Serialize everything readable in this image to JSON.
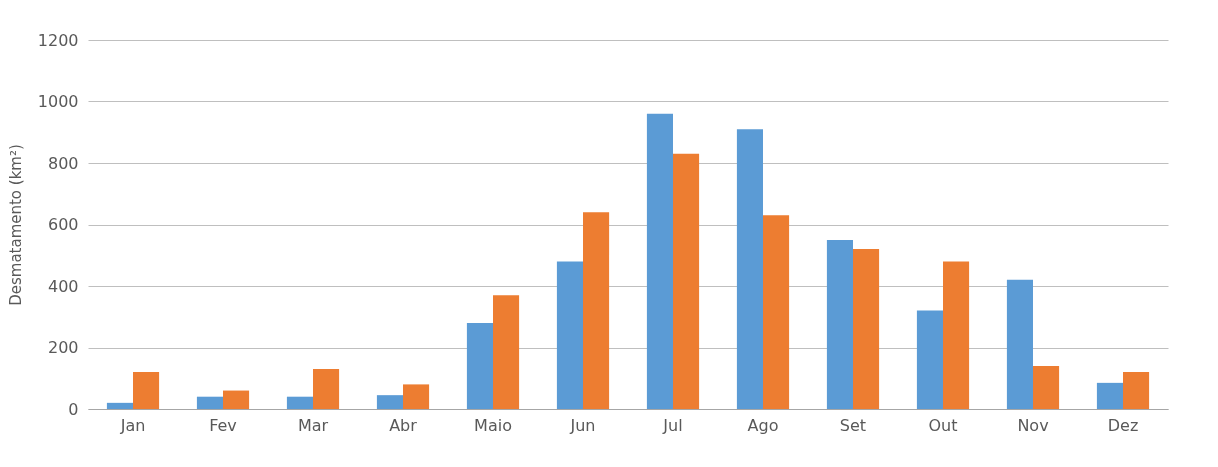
{
  "chart_data": {
    "type": "bar",
    "ylabel": "Desmatamento (km²)",
    "categories": [
      "Jan",
      "Fev",
      "Mar",
      "Abr",
      "Maio",
      "Jun",
      "Jul",
      "Ago",
      "Set",
      "Out",
      "Nov",
      "Dez"
    ],
    "series": [
      {
        "color": "#5b9bd5",
        "values": [
          20,
          40,
          40,
          45,
          280,
          480,
          960,
          910,
          550,
          320,
          420,
          85
        ]
      },
      {
        "color": "#ed7d31",
        "values": [
          120,
          60,
          130,
          80,
          370,
          640,
          830,
          630,
          520,
          480,
          140,
          120
        ]
      }
    ],
    "ylim": [
      0,
      1200
    ],
    "yticks": [
      0,
      200,
      400,
      600,
      800,
      1000,
      1200
    ],
    "grid": "y"
  }
}
